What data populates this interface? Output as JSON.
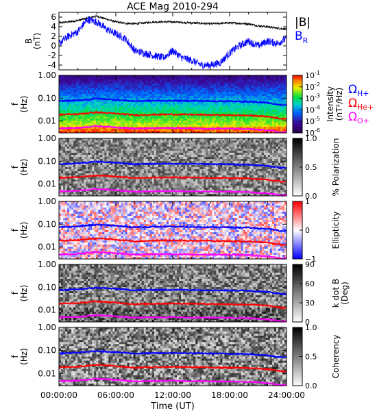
{
  "figure": {
    "title": "ACE Mag 2010-294",
    "xlabel": "Time (UT)",
    "xticks": [
      "00:00:00",
      "06:00:00",
      "12:00:00",
      "18:00:00",
      "24:00:00"
    ]
  },
  "chart_data": [
    {
      "type": "line",
      "panel": "field",
      "ylabel_lines": [
        "B",
        "(nT)"
      ],
      "ylim": [
        -5,
        7
      ],
      "yticks": [
        "6",
        "4",
        "2",
        "0",
        "-2",
        "-4"
      ],
      "yticks_values": [
        6,
        4,
        2,
        0,
        -2,
        -4
      ],
      "x_hours": [
        0,
        1,
        2,
        3,
        4,
        5,
        6,
        7,
        8,
        9,
        10,
        11,
        12,
        13,
        14,
        15,
        16,
        17,
        18,
        19,
        20,
        21,
        22,
        23,
        24
      ],
      "series": [
        {
          "name": "|B|",
          "color": "#000000",
          "values": [
            4.8,
            5.0,
            5.3,
            5.8,
            6.2,
            5.6,
            5.0,
            4.7,
            4.6,
            4.8,
            5.0,
            5.0,
            5.0,
            4.9,
            4.8,
            4.7,
            4.6,
            4.7,
            4.8,
            4.7,
            4.6,
            4.2,
            4.0,
            3.7,
            3.5
          ]
        },
        {
          "name": "B_R",
          "color": "#0000ff",
          "values": [
            0.5,
            2.0,
            3.0,
            5.5,
            5.0,
            3.5,
            2.5,
            1.5,
            -1.0,
            -1.5,
            -2.0,
            -2.5,
            -1.0,
            -2.5,
            -3.0,
            -4.0,
            -4.0,
            -3.5,
            -1.5,
            0.0,
            1.0,
            0.0,
            1.0,
            0.5,
            1.5
          ]
        }
      ],
      "legend": [
        {
          "label": "|B|",
          "color": "#000000"
        },
        {
          "label": "B",
          "sub": "R",
          "color": "#0000ff"
        }
      ]
    },
    {
      "type": "heatmap",
      "panel": "intensity",
      "ylabel_lines": [
        "f",
        "(Hz)"
      ],
      "yscale": "log",
      "ylim": [
        0.003,
        1.0
      ],
      "yticks": [
        "1.00",
        "0.10",
        "0.01"
      ],
      "yticks_values": [
        1.0,
        0.1,
        0.01
      ],
      "colorbar": {
        "label_lines": [
          "Intensity",
          "(nT²/Hz)"
        ],
        "scale": "log",
        "range": [
          1e-06,
          0.1
        ],
        "tick_values": [
          0.1,
          0.01,
          0.001,
          0.0001,
          1e-05,
          1e-06
        ],
        "tick_labels": [
          "10",
          "10",
          "10",
          "10",
          "10",
          "10"
        ],
        "tick_exponents": [
          "-1",
          "-2",
          "-3",
          "-4",
          "-5",
          "-6"
        ]
      },
      "legend": [
        {
          "label": "Ω",
          "sub": "H+",
          "color": "#0000ff"
        },
        {
          "label": "Ω",
          "sub": "He+",
          "color": "#ff0000"
        },
        {
          "label": "Ω",
          "sub": "O+",
          "color": "#ff00ff"
        }
      ]
    },
    {
      "type": "heatmap",
      "panel": "polarization",
      "ylabel_lines": [
        "f",
        "(Hz)"
      ],
      "yscale": "log",
      "ylim": [
        0.003,
        1.0
      ],
      "yticks": [
        "1.00",
        "0.10",
        "0.01"
      ],
      "yticks_values": [
        1.0,
        0.1,
        0.01
      ],
      "colorbar": {
        "label_lines": [
          "% Polarization"
        ],
        "range": [
          0,
          1
        ],
        "tick_values": [
          1.0,
          0.5,
          0.0
        ],
        "tick_labels": [
          "1.0",
          "0.5",
          "0.0"
        ]
      }
    },
    {
      "type": "heatmap",
      "panel": "ellipticity",
      "ylabel_lines": [
        "f",
        "(Hz)"
      ],
      "yscale": "log",
      "ylim": [
        0.003,
        1.0
      ],
      "yticks": [
        "1.00",
        "0.10",
        "0.01"
      ],
      "yticks_values": [
        1.0,
        0.1,
        0.01
      ],
      "colorbar": {
        "label_lines": [
          "Ellipticity"
        ],
        "range": [
          -1,
          1
        ],
        "tick_values": [
          1,
          0,
          -1
        ],
        "tick_labels": [
          "1",
          "0",
          "−1"
        ]
      }
    },
    {
      "type": "heatmap",
      "panel": "kdotb",
      "ylabel_lines": [
        "f",
        "(Hz)"
      ],
      "yscale": "log",
      "ylim": [
        0.003,
        1.0
      ],
      "yticks": [
        "1.00",
        "0.10",
        "0.01"
      ],
      "yticks_values": [
        1.0,
        0.1,
        0.01
      ],
      "colorbar": {
        "label_lines": [
          "k dot B",
          "(Deg)"
        ],
        "range": [
          0,
          90
        ],
        "tick_values": [
          90,
          60,
          30,
          0
        ],
        "tick_labels": [
          "90",
          "60",
          "30",
          "0"
        ]
      }
    },
    {
      "type": "heatmap",
      "panel": "coherency",
      "ylabel_lines": [
        "f",
        "(Hz)"
      ],
      "yscale": "log",
      "ylim": [
        0.003,
        1.0
      ],
      "yticks": [
        "1.00",
        "0.10",
        "0.01"
      ],
      "yticks_values": [
        1.0,
        0.1,
        0.01
      ],
      "colorbar": {
        "label_lines": [
          "Coherency"
        ],
        "range": [
          0,
          1
        ],
        "tick_values": [
          1.0,
          0.5,
          0.0
        ],
        "tick_labels": [
          "1.0",
          "0.5",
          "0.0"
        ]
      }
    }
  ],
  "gyrofrequency_lines": {
    "x_hours": [
      0,
      2,
      4,
      6,
      8,
      10,
      12,
      14,
      16,
      18,
      20,
      22,
      23.5,
      24
    ],
    "series": [
      {
        "name": "H+",
        "color": "#0000ff",
        "values": [
          0.075,
          0.08,
          0.095,
          0.085,
          0.074,
          0.077,
          0.078,
          0.076,
          0.074,
          0.073,
          0.07,
          0.062,
          0.05,
          0.052
        ]
      },
      {
        "name": "He+",
        "color": "#ff0000",
        "values": [
          0.019,
          0.02,
          0.024,
          0.021,
          0.018,
          0.019,
          0.0195,
          0.019,
          0.0185,
          0.018,
          0.0175,
          0.0155,
          0.0125,
          0.013
        ]
      },
      {
        "name": "O+",
        "color": "#ff00ff",
        "values": [
          0.0047,
          0.005,
          0.006,
          0.0053,
          0.0046,
          0.0048,
          0.0049,
          0.0047,
          0.0046,
          0.0046,
          0.0044,
          0.0039,
          0.0031,
          0.0033
        ]
      }
    ]
  }
}
